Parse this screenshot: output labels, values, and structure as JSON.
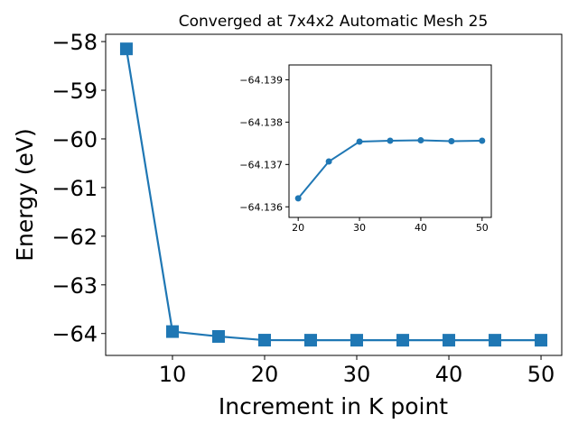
{
  "chart_data": [
    {
      "type": "line",
      "title": "Converged at 7x4x2 Automatic Mesh 25",
      "xlabel": "Increment in K point",
      "ylabel": "Energy (eV)",
      "x": [
        5,
        10,
        15,
        20,
        25,
        30,
        35,
        40,
        45,
        50
      ],
      "series": [
        {
          "values": [
            -58.15,
            -63.96,
            -64.06,
            -64.136,
            -64.137,
            -64.1375,
            -64.1375,
            -64.1375,
            -64.1375,
            -64.1375
          ]
        }
      ],
      "xlim": [
        2.75,
        52.25
      ],
      "ylim": [
        -64.45,
        -57.85
      ],
      "xticks": [
        10,
        20,
        30,
        40,
        50
      ],
      "yticks": [
        -58,
        -59,
        -60,
        -61,
        -62,
        -63,
        -64
      ],
      "ytick_labels": [
        "−58",
        "−59",
        "−60",
        "−61",
        "−62",
        "−63",
        "−64"
      ],
      "marker": "square",
      "color": "#1f77b4",
      "grid": false
    },
    {
      "type": "line",
      "title": "",
      "xlabel": "",
      "ylabel": "",
      "x": [
        20,
        25,
        30,
        35,
        40,
        45,
        50
      ],
      "series": [
        {
          "values": [
            -64.1362,
            -64.13707,
            -64.13754,
            -64.13756,
            -64.13757,
            -64.13755,
            -64.13756
          ]
        }
      ],
      "xlim": [
        18.5,
        51.5
      ],
      "ylim": [
        -64.13575,
        -64.13935
      ],
      "xticks": [
        20,
        30,
        40,
        50
      ],
      "yticks": [
        -64.139,
        -64.138,
        -64.137,
        -64.136
      ],
      "ytick_labels": [
        "−64.139",
        "−64.138",
        "−64.137",
        "−64.136"
      ],
      "marker": "circle",
      "color": "#1f77b4",
      "grid": false
    }
  ]
}
